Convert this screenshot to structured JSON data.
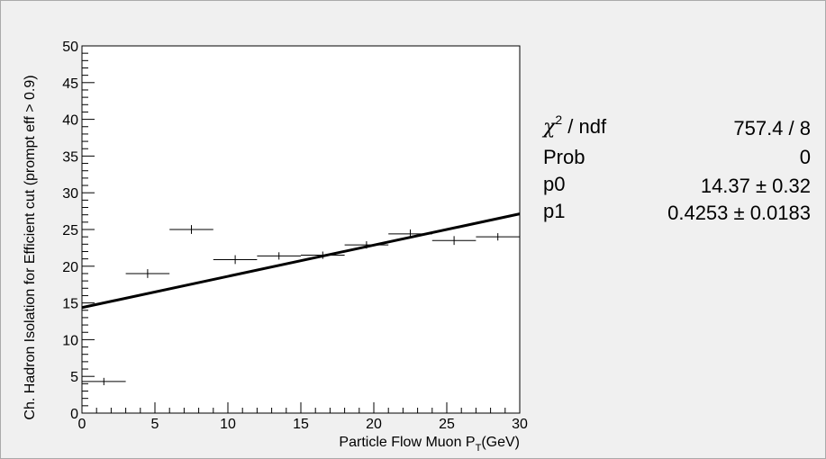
{
  "chart_data": {
    "type": "scatter",
    "title": "",
    "xlabel": "Particle Flow Muon P",
    "xlabel_sub": "T",
    "xlabel_unit": "(GeV)",
    "ylabel": "Ch. Hadron Isolation for Efficient cut (prompt eff > 0.9)",
    "xlim": [
      0,
      30
    ],
    "ylim": [
      0,
      50
    ],
    "xticks": [
      "0",
      "5",
      "10",
      "15",
      "20",
      "25",
      "30"
    ],
    "yticks": [
      "0",
      "5",
      "10",
      "15",
      "20",
      "25",
      "30",
      "35",
      "40",
      "45",
      "50"
    ],
    "grid": false,
    "points": [
      {
        "x": 1.5,
        "xerr": 1.5,
        "y": 4.3,
        "yerr": 0.5
      },
      {
        "x": 4.5,
        "xerr": 1.5,
        "y": 19.0,
        "yerr": 0.6
      },
      {
        "x": 7.5,
        "xerr": 1.5,
        "y": 25.0,
        "yerr": 0.6
      },
      {
        "x": 10.5,
        "xerr": 1.5,
        "y": 20.9,
        "yerr": 0.6
      },
      {
        "x": 13.5,
        "xerr": 1.5,
        "y": 21.4,
        "yerr": 0.5
      },
      {
        "x": 16.5,
        "xerr": 1.5,
        "y": 21.5,
        "yerr": 0.5
      },
      {
        "x": 19.5,
        "xerr": 1.5,
        "y": 22.9,
        "yerr": 0.5
      },
      {
        "x": 22.5,
        "xerr": 1.5,
        "y": 24.4,
        "yerr": 0.6
      },
      {
        "x": 25.5,
        "xerr": 1.5,
        "y": 23.5,
        "yerr": 0.6
      },
      {
        "x": 28.5,
        "xerr": 1.5,
        "y": 24.0,
        "yerr": 0.5
      }
    ],
    "fit": {
      "type": "linear",
      "p0": 14.37,
      "p1": 0.4253
    }
  },
  "stats": {
    "rows": [
      {
        "label": "/ ndf",
        "value": "757.4 / 8"
      },
      {
        "label": "Prob",
        "value": "0"
      },
      {
        "label": "p0",
        "value": "14.37 ± 0.32"
      },
      {
        "label": "p1",
        "value": "0.4253 ± 0.0183"
      }
    ]
  }
}
